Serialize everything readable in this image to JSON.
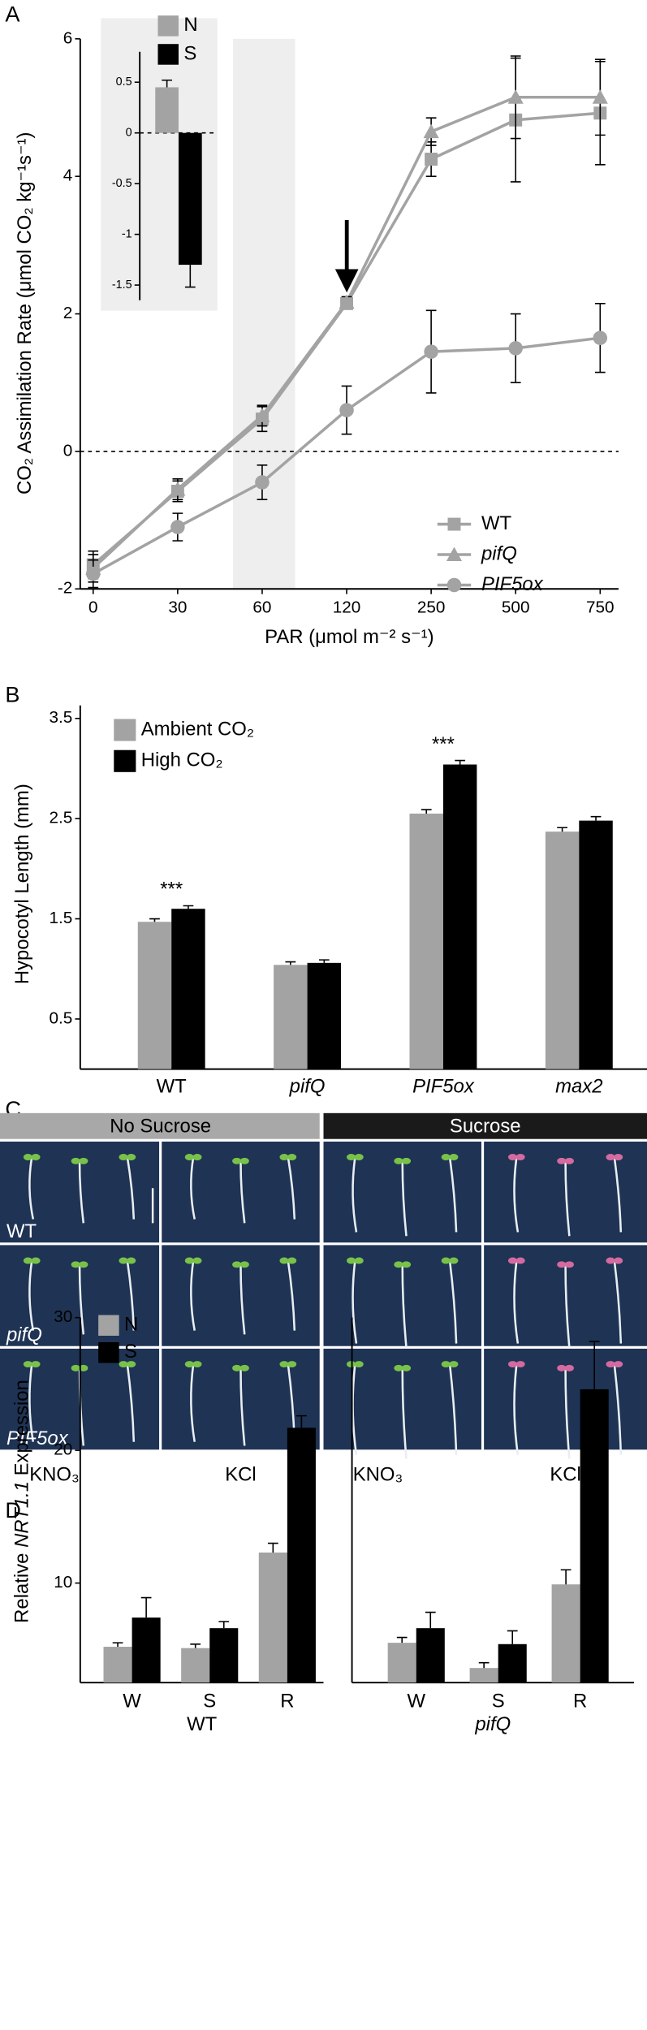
{
  "chart_data": [
    {
      "type": "line",
      "panel_label": "A",
      "xlabel": "PAR (μmol m⁻² s⁻¹)",
      "ylabel": "CO₂ Assimilation Rate (μmol CO₂ kg⁻¹s⁻¹)",
      "categories": [
        "0",
        "30",
        "60",
        "120",
        "250",
        "500",
        "750"
      ],
      "ylim": [
        -2,
        6
      ],
      "yticks": [
        -2,
        0,
        2,
        4,
        6
      ],
      "legend": "lower right",
      "series": [
        {
          "name": "WT",
          "color": "#a3a3a3",
          "marker": "square",
          "values": [
            -1.65,
            -0.58,
            0.47,
            2.15,
            4.25,
            4.82,
            4.92
          ],
          "errors": [
            0.2,
            0.15,
            0.18,
            0.08,
            0.25,
            0.9,
            0.75
          ]
        },
        {
          "name": "pifQ",
          "color": "#a3a3a3",
          "marker": "triangle",
          "values": [
            -1.7,
            -0.55,
            0.52,
            2.17,
            4.65,
            5.15,
            5.15
          ],
          "errors": [
            0.2,
            0.15,
            0.15,
            0.08,
            0.2,
            0.6,
            0.55
          ]
        },
        {
          "name": "PIF5ox",
          "color": "#a3a3a3",
          "marker": "circle",
          "values": [
            -1.78,
            -1.1,
            -0.45,
            0.6,
            1.45,
            1.5,
            1.65
          ],
          "errors": [
            0.2,
            0.2,
            0.25,
            0.35,
            0.6,
            0.5,
            0.5
          ]
        }
      ]
    },
    {
      "type": "bar",
      "categories": [
        null
      ],
      "ylim": [
        -1.65,
        0.8
      ],
      "yticks": [
        0.5,
        0,
        -0.5,
        -1,
        -1.5
      ],
      "legend": "upper right",
      "series": [
        {
          "name": "N",
          "color": "#a3a3a3",
          "values": [
            0.45
          ],
          "errors": [
            0.07
          ]
        },
        {
          "name": "S",
          "color": "#000000",
          "values": [
            -1.3
          ],
          "errors": [
            0.22
          ]
        }
      ]
    },
    {
      "type": "bar",
      "panel_label": "B",
      "ylabel": "Hypocotyl Length (mm)",
      "categories": [
        "WT",
        "pifQ",
        "PIF5ox",
        "max2"
      ],
      "ylim": [
        0,
        3.63
      ],
      "yticks": [
        0.5,
        1.5,
        2.5,
        3.5
      ],
      "legend": "upper left",
      "significance": [
        "***",
        null,
        "***",
        null
      ],
      "series": [
        {
          "name": "Ambient CO₂",
          "color": "#a3a3a3",
          "values": [
            1.47,
            1.04,
            2.55,
            2.37
          ],
          "errors": [
            0.03,
            0.03,
            0.04,
            0.04
          ]
        },
        {
          "name": "High CO₂",
          "color": "#000000",
          "values": [
            1.6,
            1.06,
            3.04,
            2.48
          ],
          "errors": [
            0.03,
            0.03,
            0.04,
            0.04
          ]
        }
      ]
    },
    {
      "type": "bar",
      "panel_label": "D",
      "ylabel": [
        "Relative ",
        "NRT1.1",
        " Expression"
      ],
      "xlabel": "WT",
      "categories": [
        "W",
        "S",
        "R"
      ],
      "ylim": [
        2.5,
        30
      ],
      "yticks": [
        10,
        20,
        30
      ],
      "legend": "upper left",
      "series": [
        {
          "name": "N",
          "color": "#a3a3a3",
          "values": [
            5.2,
            5.1,
            12.3
          ],
          "errors": [
            0.3,
            0.3,
            0.7
          ]
        },
        {
          "name": "S",
          "color": "#000000",
          "values": [
            7.4,
            6.6,
            21.7
          ],
          "errors": [
            1.5,
            0.5,
            0.9
          ]
        }
      ]
    },
    {
      "type": "bar",
      "xlabel": "pifQ",
      "categories": [
        "W",
        "S",
        "R"
      ],
      "ylim": [
        2.5,
        30
      ],
      "series": [
        {
          "color": "#a3a3a3",
          "values": [
            5.5,
            3.6,
            9.9
          ],
          "errors": [
            0.4,
            0.4,
            1.1
          ]
        },
        {
          "color": "#000000",
          "values": [
            6.6,
            5.4,
            24.6
          ],
          "errors": [
            1.2,
            1.0,
            3.6
          ]
        }
      ]
    }
  ],
  "photo_panel": {
    "panel_label": "C",
    "column_headers": [
      "No Sucrose",
      "Sucrose"
    ],
    "row_labels": [
      "WT",
      "pifQ",
      "PIF5ox"
    ],
    "column_labels": [
      "KNO₃",
      "KCl",
      "KNO₃",
      "KCl"
    ]
  }
}
